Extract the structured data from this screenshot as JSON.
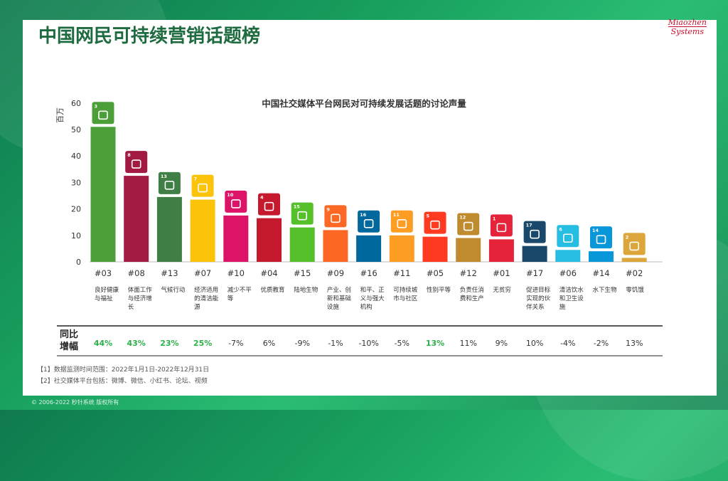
{
  "page": {
    "title": "中国网民可持续营销话题榜",
    "logo": [
      "Miaozhen",
      "Systems"
    ],
    "yoy_label": [
      "同比",
      "增幅"
    ],
    "notes": [
      "【1】数据监测时间范围：2022年1月1日-2022年12月31日",
      "【2】社交媒体平台包括：微博、微信、小红书、论坛、视频"
    ],
    "copyright": "© 2006-2022 秒针系统 版权所有"
  },
  "colors": {
    "positive_growth": "#2bb04a",
    "text": "#333333",
    "axis": "#222222"
  },
  "chart_data": {
    "type": "bar",
    "title": "中国社交媒体平台网民对可持续发展话题的讨论声量",
    "ylabel": "百万",
    "ylim": [
      0,
      60
    ],
    "yticks": [
      0,
      10,
      20,
      30,
      40,
      50,
      60
    ],
    "categories": [
      "#03",
      "#08",
      "#13",
      "#07",
      "#10",
      "#04",
      "#15",
      "#09",
      "#16",
      "#11",
      "#05",
      "#12",
      "#01",
      "#17",
      "#06",
      "#14",
      "#02"
    ],
    "values": [
      51,
      32.5,
      24.5,
      23.5,
      17.5,
      16.5,
      13,
      12,
      10,
      10,
      9.5,
      9,
      8.5,
      6,
      4.5,
      4,
      1.5
    ],
    "colors": [
      "#4c9f38",
      "#a21942",
      "#3f7e44",
      "#fcc30b",
      "#dd1367",
      "#c5192d",
      "#56c02b",
      "#fd6925",
      "#00689d",
      "#fd9d24",
      "#ff3a21",
      "#bf8b2e",
      "#e5243b",
      "#19486a",
      "#26bde2",
      "#0a97d9",
      "#dda63a"
    ],
    "icons": [
      "heartbeat-icon",
      "growth-chart-icon",
      "eye-globe-icon",
      "sun-icon",
      "equality-arrows-icon",
      "book-icon",
      "tree-icon",
      "cubes-icon",
      "dove-icon",
      "city-icon",
      "gender-icon",
      "infinity-icon",
      "family-icon",
      "flower-ring-icon",
      "water-drop-icon",
      "fish-icon",
      "bowl-icon"
    ],
    "labels": [
      "良好健康与福祉",
      "体面工作与经济增长",
      "气候行动",
      "经济适用的清洁能源",
      "减少不平等",
      "优质教育",
      "陆地生物",
      "产业、创新和基础设施",
      "和平、正义与强大机构",
      "可持续城市与社区",
      "性别平等",
      "负责任消费和生产",
      "无贫穷",
      "促进目标实现的伙伴关系",
      "清洁饮水和卫生设施",
      "水下生物",
      "零饥饿"
    ],
    "growth": [
      "44%",
      "43%",
      "23%",
      "25%",
      "-7%",
      "6%",
      "-9%",
      "-1%",
      "-10%",
      "-5%",
      "13%",
      "11%",
      "9%",
      "10%",
      "-4%",
      "-2%",
      "13%"
    ],
    "growth_highlight": [
      true,
      true,
      true,
      true,
      false,
      false,
      false,
      false,
      false,
      false,
      true,
      false,
      false,
      false,
      false,
      false,
      false
    ]
  }
}
